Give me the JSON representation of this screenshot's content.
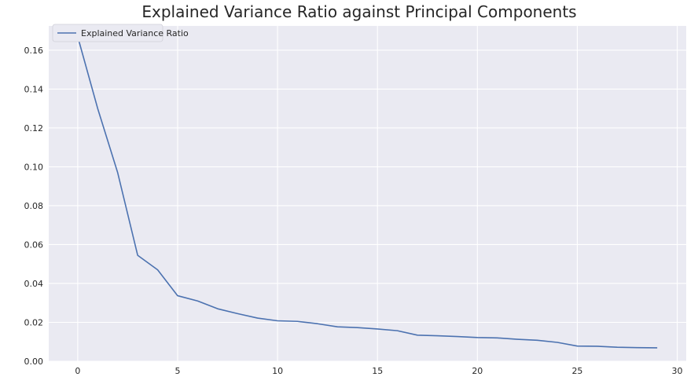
{
  "chart_data": {
    "type": "line",
    "title": "Explained Variance Ratio against Principal Components",
    "xlabel": "",
    "ylabel": "",
    "xlim": [
      -1.45,
      30.45
    ],
    "ylim": [
      0.0,
      0.1725
    ],
    "xticks": [
      0,
      5,
      10,
      15,
      20,
      25,
      30
    ],
    "yticks": [
      0.0,
      0.02,
      0.04,
      0.06,
      0.08,
      0.1,
      0.12,
      0.14,
      0.16
    ],
    "xtick_labels": [
      "0",
      "5",
      "10",
      "15",
      "20",
      "25",
      "30"
    ],
    "ytick_labels": [
      "0.00",
      "0.02",
      "0.04",
      "0.06",
      "0.08",
      "0.10",
      "0.12",
      "0.14",
      "0.16"
    ],
    "grid": true,
    "legend_position": "upper-left",
    "series": [
      {
        "name": "Explained Variance Ratio",
        "color": "#4c72b0",
        "x": [
          0,
          1,
          2,
          3,
          4,
          5,
          6,
          7,
          8,
          9,
          10,
          11,
          12,
          13,
          14,
          15,
          16,
          17,
          18,
          19,
          20,
          21,
          22,
          23,
          24,
          25,
          26,
          27,
          28,
          29
        ],
        "values": [
          0.167,
          0.13,
          0.097,
          0.0545,
          0.047,
          0.0337,
          0.031,
          0.027,
          0.0245,
          0.0222,
          0.0208,
          0.0205,
          0.0193,
          0.0177,
          0.0173,
          0.0166,
          0.0157,
          0.0134,
          0.0131,
          0.0127,
          0.0122,
          0.012,
          0.0113,
          0.0108,
          0.0097,
          0.0078,
          0.0077,
          0.0072,
          0.007,
          0.0069
        ]
      }
    ]
  },
  "colors": {
    "plot_background": "#eaeaf2",
    "grid": "#ffffff",
    "text": "#262626"
  }
}
